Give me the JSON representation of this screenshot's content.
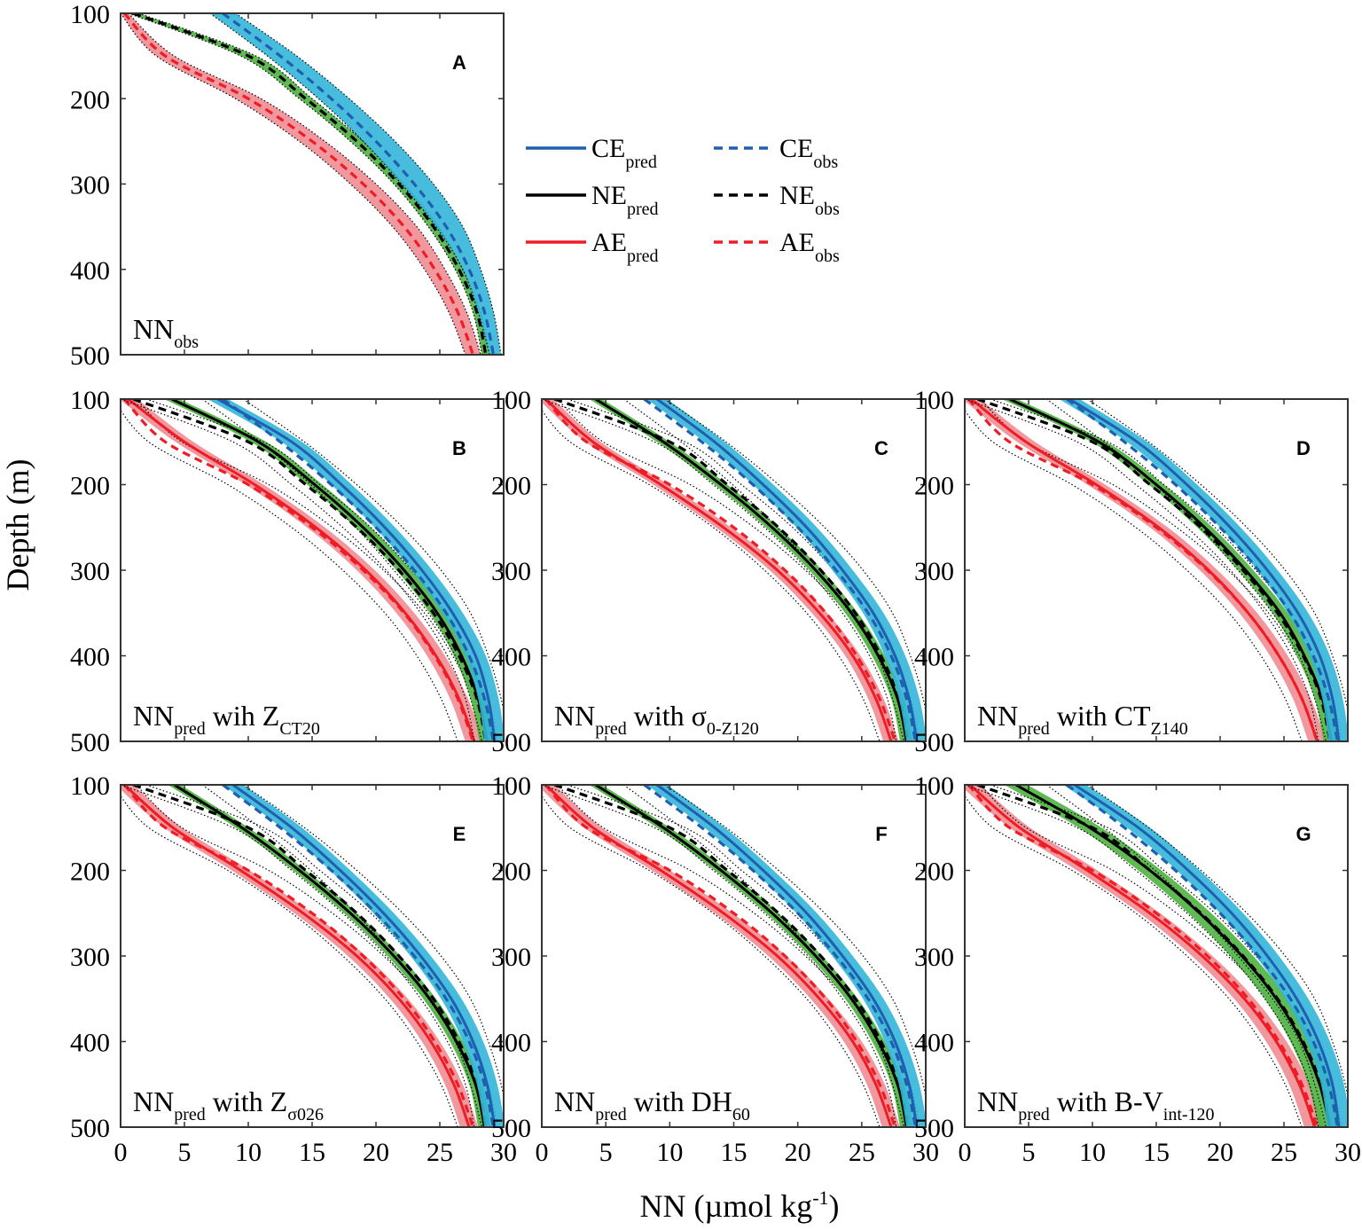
{
  "colors": {
    "ce_band": "#33b5d8",
    "ce_line": "#1f5fb0",
    "ne_band": "#4fb340",
    "ne_line": "#000000",
    "ae_band": "#f08c94",
    "ae_line": "#ee1c25",
    "dotted": "#000000"
  },
  "legend": {
    "items": [
      {
        "key": "ce_pred",
        "main": "CE",
        "sub": "pred",
        "color": "#1f5fb0",
        "dashed": false
      },
      {
        "key": "ce_obs",
        "main": "CE",
        "sub": "obs",
        "color": "#1f5fb0",
        "dashed": true
      },
      {
        "key": "ne_pred",
        "main": "NE",
        "sub": "pred",
        "color": "#000000",
        "dashed": false
      },
      {
        "key": "ne_obs",
        "main": "NE",
        "sub": "obs",
        "color": "#000000",
        "dashed": true
      },
      {
        "key": "ae_pred",
        "main": "AE",
        "sub": "pred",
        "color": "#ee1c25",
        "dashed": false
      },
      {
        "key": "ae_obs",
        "main": "AE",
        "sub": "obs",
        "color": "#ee1c25",
        "dashed": true
      }
    ]
  },
  "axes": {
    "ylabel": "Depth (m)",
    "xlabel_main": "NN (µmol kg",
    "xlabel_sup": "-1",
    "xlabel_end": ")",
    "x_ticks": [
      "0",
      "5",
      "10",
      "15",
      "20",
      "25",
      "30"
    ],
    "y_ticks": [
      "100",
      "200",
      "300",
      "400",
      "500"
    ]
  },
  "chart_data": {
    "type": "line",
    "xlim": [
      0,
      30
    ],
    "ylim": [
      100,
      500
    ],
    "y_reversed": true,
    "depth": [
      100,
      150,
      200,
      250,
      300,
      350,
      400,
      450,
      500
    ],
    "observed": {
      "CE": {
        "mean": [
          8.0,
          12.5,
          16.5,
          20.0,
          23.0,
          25.5,
          27.3,
          28.5,
          29.2
        ],
        "lower": [
          7.0,
          11.5,
          15.5,
          19.0,
          22.0,
          24.7,
          26.8,
          28.0,
          28.9
        ],
        "upper": [
          9.0,
          13.8,
          17.9,
          21.5,
          24.5,
          26.8,
          28.2,
          29.2,
          29.8
        ]
      },
      "NE": {
        "mean": [
          1.0,
          10.0,
          14.5,
          18.5,
          21.8,
          24.5,
          26.5,
          27.9,
          28.6
        ],
        "lower": [
          0.6,
          9.4,
          14.0,
          18.0,
          21.4,
          24.1,
          26.2,
          27.6,
          28.3
        ],
        "upper": [
          1.4,
          10.6,
          15.0,
          19.0,
          22.2,
          24.9,
          26.8,
          28.2,
          28.9
        ]
      },
      "AE": {
        "mean": [
          0.3,
          3.5,
          10.0,
          15.0,
          19.0,
          22.2,
          24.6,
          26.4,
          27.6
        ],
        "lower": [
          0.0,
          2.8,
          9.0,
          14.0,
          18.0,
          21.3,
          23.8,
          25.7,
          27.0
        ],
        "upper": [
          0.6,
          4.2,
          11.0,
          16.0,
          20.0,
          23.2,
          25.4,
          27.1,
          28.2
        ]
      }
    },
    "panels": [
      {
        "id": "A",
        "annotation_main": "NN",
        "annotation_sub": "obs",
        "annotation_tail": "",
        "annotation_tail_sub": "",
        "predicted": null
      },
      {
        "id": "B",
        "annotation_main": "NN",
        "annotation_sub": "pred",
        "annotation_tail": " wih Z",
        "annotation_tail_sub": "CT20",
        "predicted": {
          "CE": {
            "mean": [
              7.6,
              13.4,
              17.3,
              20.7,
              23.6,
              26.0,
              27.8,
              28.8,
              29.3
            ],
            "spread": 0.8
          },
          "NE": {
            "mean": [
              4.0,
              10.8,
              15.2,
              19.0,
              22.2,
              24.8,
              26.7,
              28.0,
              28.7
            ],
            "spread": 0.6
          },
          "AE": {
            "mean": [
              0.6,
              5.0,
              10.5,
              15.3,
              19.2,
              22.3,
              24.7,
              26.5,
              27.7
            ],
            "spread": 0.7
          }
        }
      },
      {
        "id": "C",
        "annotation_main": "NN",
        "annotation_sub": "pred",
        "annotation_tail": " with σ",
        "annotation_tail_sub": "0-Z120",
        "predicted": {
          "CE": {
            "mean": [
              9.0,
              13.5,
              17.3,
              20.7,
              23.5,
              25.9,
              27.6,
              28.7,
              29.3
            ],
            "spread": 0.8
          },
          "NE": {
            "mean": [
              4.2,
              9.5,
              14.0,
              18.0,
              21.4,
              24.2,
              26.3,
              27.8,
              28.5
            ],
            "spread": 0.5
          },
          "AE": {
            "mean": [
              0.3,
              4.0,
              9.3,
              14.2,
              18.4,
              21.7,
              24.3,
              26.1,
              27.3
            ],
            "spread": 0.6
          }
        }
      },
      {
        "id": "D",
        "annotation_main": "NN",
        "annotation_sub": "pred",
        "annotation_tail": " with CT",
        "annotation_tail_sub": "Z140",
        "predicted": {
          "CE": {
            "mean": [
              8.2,
              13.5,
              17.4,
              20.8,
              23.7,
              26.1,
              27.8,
              28.8,
              29.3
            ],
            "spread": 0.8
          },
          "NE": {
            "mean": [
              3.5,
              10.5,
              15.0,
              18.8,
              22.0,
              24.7,
              26.6,
              28.0,
              28.7
            ],
            "spread": 0.6
          },
          "AE": {
            "mean": [
              0.5,
              4.8,
              10.3,
              15.2,
              19.1,
              22.2,
              24.6,
              26.4,
              27.6
            ],
            "spread": 0.7
          }
        }
      },
      {
        "id": "E",
        "annotation_main": "NN",
        "annotation_sub": "pred",
        "annotation_tail": " with Z",
        "annotation_tail_sub": "σ026",
        "predicted": {
          "CE": {
            "mean": [
              8.8,
              13.4,
              17.2,
              20.6,
              23.5,
              25.9,
              27.6,
              28.7,
              29.3
            ],
            "spread": 0.8
          },
          "NE": {
            "mean": [
              4.2,
              9.5,
              14.0,
              18.0,
              21.4,
              24.2,
              26.3,
              27.8,
              28.5
            ],
            "spread": 0.5
          },
          "AE": {
            "mean": [
              0.3,
              4.1,
              9.4,
              14.3,
              18.5,
              21.8,
              24.3,
              26.1,
              27.3
            ],
            "spread": 0.7
          }
        }
      },
      {
        "id": "F",
        "annotation_main": "NN",
        "annotation_sub": "pred",
        "annotation_tail": " with DH",
        "annotation_tail_sub": "60",
        "predicted": {
          "CE": {
            "mean": [
              9.0,
              13.5,
              17.3,
              20.7,
              23.5,
              25.9,
              27.6,
              28.7,
              29.3
            ],
            "spread": 0.8
          },
          "NE": {
            "mean": [
              4.2,
              9.5,
              14.0,
              18.0,
              21.4,
              24.2,
              26.3,
              27.8,
              28.5
            ],
            "spread": 0.5
          },
          "AE": {
            "mean": [
              0.3,
              4.0,
              9.3,
              14.2,
              18.4,
              21.7,
              24.3,
              26.1,
              27.3
            ],
            "spread": 0.7
          }
        }
      },
      {
        "id": "G",
        "annotation_main": "NN",
        "annotation_sub": "pred",
        "annotation_tail": " with B-V",
        "annotation_tail_sub": "int-120",
        "predicted": {
          "CE": {
            "mean": [
              8.6,
              13.6,
              17.5,
              20.9,
              23.7,
              26.0,
              27.7,
              28.8,
              29.3
            ],
            "spread": 0.9
          },
          "NE": {
            "mean": [
              4.0,
              9.8,
              14.5,
              18.4,
              21.7,
              24.4,
              26.4,
              27.8,
              28.6
            ],
            "spread": 0.9
          },
          "AE": {
            "mean": [
              0.4,
              4.3,
              9.6,
              14.5,
              18.6,
              21.9,
              24.4,
              26.2,
              27.4
            ],
            "spread": 0.8
          }
        }
      }
    ]
  }
}
